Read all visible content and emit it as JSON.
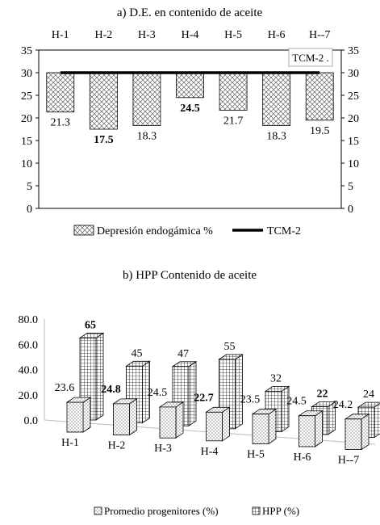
{
  "chart_data": [
    {
      "type": "bar",
      "title": "a) D.E. en contenido de aceite",
      "categories": [
        "H-1",
        "H-2",
        "H-3",
        "H-4",
        "H-5",
        "H-6",
        "H--7"
      ],
      "series": [
        {
          "name": "Depresión endogámica %",
          "type": "bar",
          "values": [
            21.3,
            17.5,
            18.3,
            24.5,
            21.7,
            18.3,
            19.5
          ],
          "bold_labels": [
            false,
            true,
            false,
            true,
            false,
            false,
            false
          ]
        },
        {
          "name": "TCM-2",
          "type": "line",
          "values": [
            30,
            30,
            30,
            30,
            30,
            30,
            30
          ]
        }
      ],
      "value_labels": [
        "21.3",
        "17.5",
        "18.3",
        "24.5",
        "21.7",
        "18.3",
        "19.5"
      ],
      "annotation": "TCM-2 .",
      "ylim": [
        0,
        35
      ],
      "yticks": [
        "0",
        "5",
        "10",
        "15",
        "20",
        "25",
        "30",
        "35"
      ],
      "y_axis_sides": "both",
      "bars_hang_from": 30,
      "grid": false,
      "legend_position": "bottom",
      "bar_pattern": "crosshatch",
      "colors": {
        "line": "#000000",
        "bar_fill": "#ffffff",
        "pattern": "#555555"
      }
    },
    {
      "type": "bar",
      "subtype": "3d-clustered",
      "title": "b) HPP Contenido de aceite",
      "categories": [
        "H-1",
        "H-2",
        "H-3",
        "H-4",
        "H-5",
        "H-6",
        "H--7"
      ],
      "series": [
        {
          "name": "Promedio progenitores (%)",
          "values": [
            23.6,
            24.8,
            24.5,
            22.7,
            23.5,
            24.5,
            24.2
          ],
          "labels": [
            "23.6",
            "24.8",
            "24.5",
            "22.7",
            "23.5",
            "24.5",
            "24.2"
          ],
          "bold_labels": [
            false,
            true,
            false,
            true,
            false,
            false,
            false
          ],
          "pattern": "dots"
        },
        {
          "name": "HPP (%)",
          "values": [
            65,
            45,
            47,
            55,
            32,
            22,
            24
          ],
          "labels": [
            "65",
            "45",
            "47",
            "55",
            "32",
            "22",
            "24"
          ],
          "bold_labels": [
            true,
            false,
            false,
            false,
            false,
            true,
            false
          ],
          "pattern": "grid"
        }
      ],
      "ylim": [
        0,
        80
      ],
      "yticks": [
        "0.0",
        "20.0",
        "40.0",
        "60.0",
        "80.0"
      ],
      "grid": false,
      "legend_position": "bottom"
    }
  ]
}
